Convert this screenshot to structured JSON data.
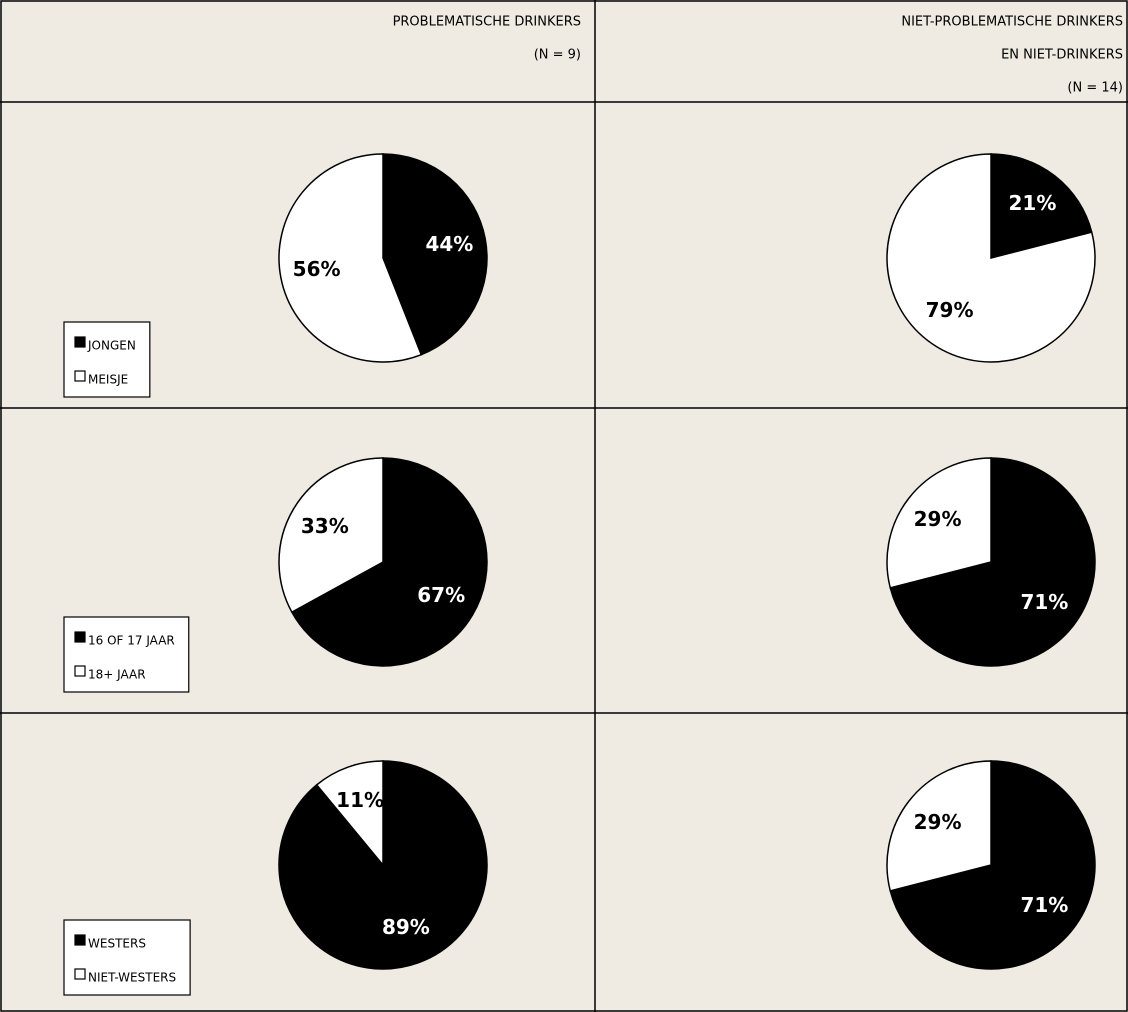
{
  "columns": [
    [
      "PROBLEMATISCHE DRINKERS",
      "(N = 9)"
    ],
    [
      "NIET-PROBLEMATISCHE DRINKERS",
      "EN NIET-DRINKERS",
      "(N = 14)"
    ]
  ],
  "chart_data": [
    {
      "type": "pie",
      "categories": [
        "JONGEN",
        "MEISJE"
      ],
      "values": [
        44,
        56
      ],
      "value_labels": [
        "44%",
        "56%"
      ],
      "colors": [
        "#000000",
        "#ffffff"
      ]
    },
    {
      "type": "pie",
      "values": [
        21,
        79
      ],
      "value_labels": [
        "21%",
        "79%"
      ],
      "colors": [
        "#000000",
        "#ffffff"
      ]
    },
    {
      "type": "pie",
      "categories": [
        "16 OF 17 JAAR",
        "18+ JAAR"
      ],
      "values": [
        67,
        33
      ],
      "value_labels": [
        "67%",
        "33%"
      ],
      "colors": [
        "#000000",
        "#ffffff"
      ]
    },
    {
      "type": "pie",
      "values": [
        71,
        29
      ],
      "value_labels": [
        "71%",
        "29%"
      ],
      "colors": [
        "#000000",
        "#ffffff"
      ]
    },
    {
      "type": "pie",
      "categories": [
        "WESTERS",
        "NIET-WESTERS"
      ],
      "values": [
        89,
        11
      ],
      "value_labels": [
        "89%",
        "11%"
      ],
      "colors": [
        "#000000",
        "#ffffff"
      ]
    },
    {
      "type": "pie",
      "values": [
        71,
        29
      ],
      "value_labels": [
        "71%",
        "29%"
      ],
      "colors": [
        "#000000",
        "#ffffff"
      ]
    }
  ]
}
